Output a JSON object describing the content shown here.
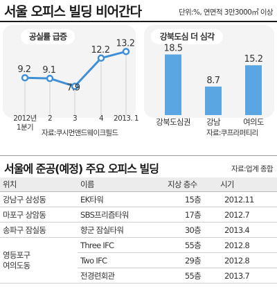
{
  "header": {
    "title": "서울 오피스 빌딩 비어간다",
    "unit_note": "단위:%, 연면적 3만3000㎡ 이상"
  },
  "chart_data": [
    {
      "type": "line",
      "title": "공실률 급증",
      "x_tick_labels": [
        "2012년\n1분기",
        "2",
        "3",
        "4",
        "2013. 1"
      ],
      "values": [
        9.2,
        9.1,
        7.9,
        12.2,
        13.2
      ],
      "value_labels": [
        "9.2",
        "9.1",
        "7.9",
        "12.2",
        "13.2"
      ],
      "ylim": [
        5,
        14.5
      ],
      "color": "#3f8fd6",
      "source": "자료:쿠시먼앤드웨이크필드"
    },
    {
      "type": "bar",
      "title": "강북도심 더 심각",
      "categories": [
        "강북도심권",
        "강남",
        "여의도"
      ],
      "values": [
        18.5,
        8.7,
        15.2
      ],
      "value_labels": [
        "18.5",
        "8.7",
        "15.2"
      ],
      "ylim": [
        0,
        22
      ],
      "color": "#5aa6e3",
      "source": "자료:쿠프라퍼티리"
    }
  ],
  "table": {
    "title": "서울에 준공(예정) 주요 오피스 빌딩",
    "source": "자료:업계 종합",
    "headers": [
      "위치",
      "이름",
      "지상 층수",
      "시기"
    ],
    "rows": [
      {
        "location": "강남구 삼성동",
        "name": "EK타워",
        "floors": "15층",
        "date": "2012.11"
      },
      {
        "location": "마포구 상암동",
        "name": "SBS프리즘타워",
        "floors": "17층",
        "date": "2012.7"
      },
      {
        "location": "송파구 잠실동",
        "name": "향군 잠실타워",
        "floors": "30층",
        "date": "2013.4"
      },
      {
        "location": "",
        "name": "Three IFC",
        "floors": "55층",
        "date": "2012.8"
      },
      {
        "location": "",
        "name": "Two IFC",
        "floors": "29층",
        "date": "2012.8"
      },
      {
        "location": "",
        "name": "전경련회관",
        "floors": "55층",
        "date": "2013.7"
      }
    ],
    "group_location_line1": "영등포구",
    "group_location_line2": "여의도동"
  }
}
